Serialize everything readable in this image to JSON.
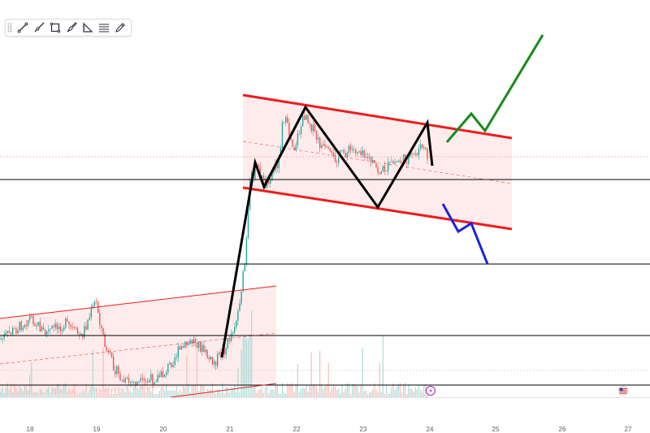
{
  "toolbar": {
    "tools": [
      {
        "name": "trend-line-icon"
      },
      {
        "name": "ray-icon"
      },
      {
        "name": "rectangle-icon"
      },
      {
        "name": "brush-icon"
      },
      {
        "name": "triangle-ruler-icon"
      },
      {
        "name": "text-lines-icon"
      },
      {
        "name": "pen-icon"
      }
    ]
  },
  "chart_data": {
    "type": "candlestick",
    "x_ticks": [
      "18",
      "19",
      "20",
      "21",
      "22",
      "23",
      "24",
      "25",
      "26",
      "27"
    ],
    "price_axis_labels": [],
    "horizontal_levels": 4,
    "patterns": [
      {
        "name": "ascending channel",
        "start_day": 17.5,
        "end_day": 21.7
      },
      {
        "name": "descending channel",
        "start_day": 21.2,
        "end_day": 25.3
      }
    ],
    "projections": [
      {
        "name": "bullish breakout",
        "color": "#1a8a1a"
      },
      {
        "name": "bearish breakdown",
        "color": "#1a22dd"
      }
    ],
    "colors": {
      "channel_line": "#ee1c1c",
      "channel_fill": "#fde6e6",
      "zigzag": "#000000",
      "up_candle": "#26a69a",
      "down_candle": "#ef5350",
      "level_line": "#000000"
    },
    "badges": {
      "event_icon": "lightning-icon",
      "flag_icon": "us-flag-icon"
    }
  }
}
